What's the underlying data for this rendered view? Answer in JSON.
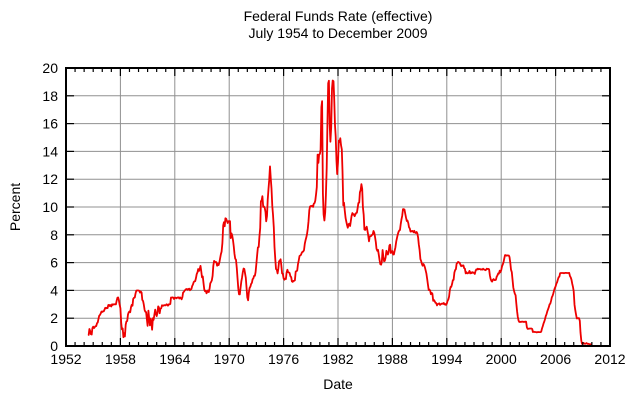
{
  "colors": {
    "line": "#ee0000",
    "grid": "#909090",
    "axis": "#000000",
    "background": "#ffffff",
    "text": "#000000"
  },
  "chart_data": {
    "type": "line",
    "title": "Federal Funds Rate (effective)",
    "subtitle": "July 1954 to December 2009",
    "xlabel": "Date",
    "ylabel": "Percent",
    "xlim": [
      1952,
      2012
    ],
    "ylim": [
      0,
      20
    ],
    "x_major_ticks": [
      1952,
      1958,
      1964,
      1970,
      1976,
      1982,
      1988,
      1994,
      2000,
      2006,
      2012
    ],
    "x_minor_tick_interval": 1,
    "y_major_ticks": [
      0,
      2,
      4,
      6,
      8,
      10,
      12,
      14,
      16,
      18,
      20
    ],
    "grid": true,
    "legend": null,
    "x_start_year": 1954.5,
    "x_step_years": 0.08333333,
    "values": [
      0.8,
      1.22,
      1.07,
      0.85,
      0.83,
      1.28,
      1.39,
      1.29,
      1.35,
      1.43,
      1.43,
      1.64,
      1.68,
      1.96,
      2.18,
      2.24,
      2.35,
      2.48,
      2.45,
      2.5,
      2.5,
      2.62,
      2.75,
      2.71,
      2.75,
      2.73,
      2.95,
      2.96,
      2.88,
      2.94,
      2.84,
      3.0,
      2.96,
      3.0,
      3.0,
      3.0,
      2.99,
      3.24,
      3.47,
      3.5,
      3.28,
      2.98,
      2.72,
      1.67,
      1.2,
      1.26,
      0.63,
      0.93,
      0.68,
      1.53,
      1.76,
      1.8,
      2.27,
      2.42,
      2.48,
      2.43,
      2.8,
      2.96,
      2.9,
      3.39,
      3.47,
      3.5,
      3.76,
      3.98,
      4.0,
      3.99,
      3.99,
      3.97,
      3.84,
      3.92,
      3.85,
      3.32,
      3.23,
      2.98,
      2.6,
      2.47,
      2.44,
      1.98,
      1.45,
      2.54,
      2.02,
      1.49,
      1.98,
      1.73,
      1.17,
      2.0,
      1.88,
      2.26,
      2.61,
      2.33,
      2.15,
      2.37,
      2.85,
      2.78,
      2.36,
      2.68,
      2.71,
      2.93,
      2.9,
      2.9,
      2.94,
      2.93,
      2.92,
      3.0,
      2.98,
      2.9,
      3.0,
      2.99,
      3.02,
      3.49,
      3.48,
      3.5,
      3.48,
      3.38,
      3.48,
      3.48,
      3.43,
      3.47,
      3.5,
      3.5,
      3.42,
      3.5,
      3.45,
      3.36,
      3.52,
      3.85,
      3.9,
      3.98,
      4.04,
      4.09,
      4.1,
      4.04,
      4.09,
      4.12,
      4.01,
      4.08,
      4.1,
      4.32,
      4.42,
      4.6,
      4.65,
      4.67,
      4.9,
      5.17,
      5.3,
      5.53,
      5.4,
      5.53,
      5.76,
      5.4,
      4.94,
      5.0,
      4.53,
      4.05,
      3.94,
      3.98,
      3.79,
      3.9,
      3.99,
      3.88,
      4.13,
      4.51,
      4.61,
      4.71,
      5.05,
      5.76,
      6.12,
      6.07,
      6.03,
      6.03,
      5.78,
      5.91,
      5.82,
      6.02,
      6.3,
      6.61,
      6.79,
      7.41,
      8.67,
      8.9,
      8.61,
      9.19,
      9.15,
      9.0,
      8.85,
      8.97,
      8.98,
      8.98,
      7.76,
      8.1,
      7.95,
      7.61,
      7.21,
      6.62,
      6.29,
      6.2,
      5.6,
      4.9,
      4.14,
      3.72,
      3.71,
      4.15,
      4.63,
      4.91,
      5.31,
      5.57,
      5.55,
      5.2,
      4.91,
      4.14,
      3.5,
      3.29,
      3.83,
      4.17,
      4.27,
      4.46,
      4.55,
      4.8,
      4.87,
      5.04,
      5.06,
      5.33,
      5.94,
      6.58,
      7.09,
      7.12,
      7.84,
      8.49,
      10.4,
      10.5,
      10.78,
      10.01,
      10.03,
      9.95,
      9.65,
      8.97,
      9.35,
      10.51,
      11.31,
      11.93,
      12.92,
      12.01,
      11.34,
      10.06,
      9.45,
      8.53,
      7.13,
      6.24,
      5.54,
      5.49,
      5.22,
      5.55,
      6.1,
      6.14,
      6.24,
      5.82,
      5.22,
      5.2,
      4.87,
      4.77,
      4.84,
      4.82,
      5.29,
      5.48,
      5.31,
      5.29,
      5.25,
      5.02,
      4.95,
      4.65,
      4.61,
      4.68,
      4.69,
      4.73,
      5.35,
      5.39,
      5.42,
      5.9,
      6.14,
      6.47,
      6.51,
      6.56,
      6.7,
      6.78,
      6.79,
      6.89,
      7.36,
      7.6,
      7.81,
      8.04,
      8.45,
      8.96,
      9.76,
      10.03,
      10.07,
      10.06,
      10.09,
      10.01,
      10.24,
      10.29,
      10.47,
      10.94,
      11.43,
      13.77,
      13.18,
      13.78,
      13.82,
      14.13,
      17.19,
      17.61,
      10.98,
      9.47,
      9.03,
      9.61,
      10.87,
      12.81,
      15.85,
      18.9,
      19.08,
      15.93,
      14.7,
      15.72,
      18.52,
      19.1,
      19.04,
      17.82,
      15.87,
      15.08,
      13.31,
      12.37,
      13.22,
      14.78,
      14.68,
      14.94,
      14.45,
      14.15,
      12.59,
      10.12,
      10.31,
      9.71,
      9.2,
      8.95,
      8.68,
      8.51,
      8.77,
      8.8,
      8.63,
      8.98,
      9.37,
      9.56,
      9.45,
      9.48,
      9.34,
      9.47,
      9.56,
      9.59,
      9.91,
      10.29,
      10.32,
      11.06,
      11.23,
      11.64,
      11.3,
      9.99,
      9.43,
      8.38,
      8.35,
      8.5,
      8.58,
      8.27,
      7.97,
      7.53,
      7.88,
      7.9,
      7.92,
      7.99,
      8.05,
      8.27,
      8.14,
      7.86,
      7.48,
      6.99,
      6.85,
      6.92,
      6.56,
      6.17,
      5.89,
      5.85,
      6.04,
      6.91,
      6.43,
      6.1,
      6.13,
      6.37,
      6.85,
      6.73,
      6.58,
      6.73,
      7.22,
      7.29,
      6.69,
      6.77,
      6.83,
      6.58,
      6.58,
      6.87,
      7.09,
      7.51,
      7.75,
      8.01,
      8.19,
      8.3,
      8.35,
      8.76,
      9.12,
      9.36,
      9.85,
      9.84,
      9.81,
      9.53,
      9.24,
      8.99,
      9.02,
      8.84,
      8.55,
      8.45,
      8.23,
      8.24,
      8.28,
      8.26,
      8.18,
      8.29,
      8.15,
      8.13,
      8.2,
      8.11,
      7.81,
      7.31,
      6.91,
      6.25,
      6.12,
      5.91,
      5.78,
      5.9,
      5.82,
      5.66,
      5.45,
      5.21,
      4.81,
      4.43,
      4.03,
      4.06,
      3.98,
      3.73,
      3.82,
      3.76,
      3.25,
      3.3,
      3.22,
      3.1,
      3.09,
      2.92,
      3.02,
      3.03,
      3.07,
      2.96,
      3.0,
      3.04,
      3.06,
      3.03,
      3.09,
      2.99,
      3.02,
      2.96,
      3.05,
      3.25,
      3.34,
      3.56,
      4.01,
      4.25,
      4.26,
      4.47,
      4.73,
      4.76,
      5.29,
      5.45,
      5.53,
      5.92,
      5.98,
      6.05,
      6.01,
      6.0,
      5.85,
      5.74,
      5.8,
      5.76,
      5.8,
      5.6,
      5.56,
      5.22,
      5.31,
      5.22,
      5.24,
      5.27,
      5.4,
      5.22,
      5.3,
      5.24,
      5.31,
      5.29,
      5.25,
      5.19,
      5.39,
      5.51,
      5.5,
      5.56,
      5.52,
      5.54,
      5.54,
      5.5,
      5.52,
      5.5,
      5.56,
      5.51,
      5.49,
      5.45,
      5.49,
      5.56,
      5.54,
      5.55,
      5.51,
      5.07,
      4.83,
      4.68,
      4.63,
      4.76,
      4.81,
      4.74,
      4.74,
      4.76,
      4.99,
      5.07,
      5.22,
      5.2,
      5.42,
      5.3,
      5.45,
      5.73,
      5.85,
      6.02,
      6.27,
      6.53,
      6.54,
      6.5,
      6.52,
      6.51,
      6.51,
      6.4,
      5.98,
      5.49,
      5.31,
      4.8,
      4.21,
      3.97,
      3.77,
      3.65,
      3.07,
      2.49,
      2.09,
      1.82,
      1.73,
      1.74,
      1.73,
      1.75,
      1.75,
      1.75,
      1.73,
      1.74,
      1.75,
      1.75,
      1.34,
      1.24,
      1.24,
      1.26,
      1.25,
      1.26,
      1.26,
      1.22,
      1.01,
      1.03,
      1.01,
      1.01,
      1.0,
      0.98,
      1.0,
      1.01,
      1.0,
      1.0,
      1.0,
      1.03,
      1.26,
      1.43,
      1.61,
      1.76,
      1.93,
      2.16,
      2.28,
      2.5,
      2.63,
      2.79,
      3.0,
      3.04,
      3.26,
      3.5,
      3.62,
      3.78,
      4.0,
      4.16,
      4.29,
      4.49,
      4.59,
      4.79,
      4.94,
      4.99,
      5.24,
      5.25,
      5.25,
      5.25,
      5.25,
      5.24,
      5.25,
      5.26,
      5.26,
      5.25,
      5.25,
      5.25,
      5.26,
      5.02,
      4.94,
      4.76,
      4.49,
      4.24,
      3.94,
      2.98,
      2.61,
      2.28,
      1.98,
      2.0,
      2.01,
      2.0,
      1.81,
      0.97,
      0.39,
      0.16,
      0.15,
      0.22,
      0.18,
      0.15,
      0.18,
      0.21,
      0.16,
      0.16,
      0.15,
      0.12,
      0.12,
      0.12
    ]
  }
}
